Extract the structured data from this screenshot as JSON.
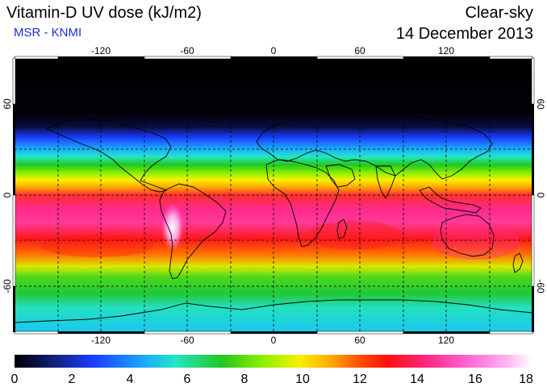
{
  "header": {
    "title": "Vitamin-D UV dose (kJ/m2)",
    "source": "MSR - KNMI",
    "mode": "Clear-sky",
    "date": "14 December 2013"
  },
  "map": {
    "lon_range": [
      -180,
      180
    ],
    "lat_range": [
      -90,
      90
    ],
    "lon_ticks": [
      -120,
      -60,
      0,
      60,
      120
    ],
    "lat_ticks": [
      60,
      0,
      -60
    ],
    "lon_tick_labels": [
      "-120",
      "-60",
      "0",
      "60",
      "120"
    ],
    "lat_tick_labels": [
      "60",
      "0",
      "-60"
    ],
    "gridlines": "dashed, every 30 degrees",
    "frame": "alternating black/white degree bar"
  },
  "colorbar": {
    "min": 0,
    "max": 18,
    "labels": [
      "0",
      "2",
      "4",
      "6",
      "8",
      "10",
      "12",
      "14",
      "16",
      "18"
    ],
    "colors": [
      "#000000",
      "#0f1f6e",
      "#1a3cff",
      "#19aaff",
      "#24e6c6",
      "#22c820",
      "#8ef000",
      "#f6f000",
      "#ffaa00",
      "#ff4800",
      "#ff1010",
      "#ff2a8a",
      "#ff6ad6",
      "#ffb4f2",
      "#ffffff"
    ]
  },
  "chart_data": {
    "type": "heatmap",
    "title": "Vitamin-D UV dose (kJ/m2)",
    "x": "longitude",
    "y": "latitude",
    "xlim": [
      -180,
      180
    ],
    "ylim": [
      -90,
      90
    ],
    "value_range": [
      0,
      18
    ],
    "latitude_profile": [
      {
        "lat": 90,
        "value": 0
      },
      {
        "lat": 60,
        "value": 0
      },
      {
        "lat": 50,
        "value": 0.5
      },
      {
        "lat": 40,
        "value": 2.5
      },
      {
        "lat": 30,
        "value": 5.5
      },
      {
        "lat": 20,
        "value": 8.5
      },
      {
        "lat": 10,
        "value": 11.5
      },
      {
        "lat": 0,
        "value": 13
      },
      {
        "lat": -10,
        "value": 14
      },
      {
        "lat": -20,
        "value": 13.5
      },
      {
        "lat": -30,
        "value": 13
      },
      {
        "lat": -40,
        "value": 11
      },
      {
        "lat": -50,
        "value": 9
      },
      {
        "lat": -60,
        "value": 8
      },
      {
        "lat": -70,
        "value": 7
      },
      {
        "lat": -90,
        "value": 6
      }
    ],
    "max_value_region": "Andes, South America (~17-18)"
  }
}
